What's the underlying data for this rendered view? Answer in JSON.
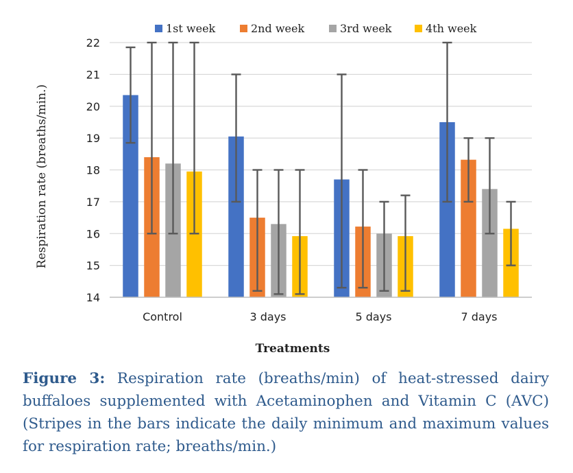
{
  "chart_data": {
    "type": "bar",
    "categories": [
      "Control",
      "3 days",
      "5 days",
      "7 days"
    ],
    "series": [
      {
        "name": "1st week",
        "color": "#4472c4",
        "values": [
          20.35,
          19.05,
          17.7,
          19.5
        ],
        "min": [
          18.85,
          17.0,
          14.3,
          17.0
        ],
        "max": [
          21.85,
          21.0,
          21.0,
          22.0
        ]
      },
      {
        "name": "2nd week",
        "color": "#ed7d31",
        "values": [
          18.4,
          16.5,
          16.22,
          18.32
        ],
        "min": [
          16.0,
          14.2,
          14.3,
          17.0
        ],
        "max": [
          22.0,
          18.0,
          18.0,
          19.0
        ]
      },
      {
        "name": "3rd week",
        "color": "#a5a5a5",
        "values": [
          18.2,
          16.3,
          16.0,
          17.4
        ],
        "min": [
          16.0,
          14.1,
          14.2,
          16.0
        ],
        "max": [
          22.0,
          18.0,
          17.0,
          19.0
        ]
      },
      {
        "name": "4th week",
        "color": "#ffc000",
        "values": [
          17.95,
          15.92,
          15.92,
          16.15
        ],
        "min": [
          16.0,
          14.1,
          14.2,
          15.0
        ],
        "max": [
          22.0,
          18.0,
          17.2,
          17.0
        ]
      }
    ],
    "ylim": [
      14,
      22
    ],
    "yticks": [
      14,
      15,
      16,
      17,
      18,
      19,
      20,
      21,
      22
    ],
    "ylabel": "Respiration rate (breaths/min.)",
    "xlabel": "Treatments",
    "grid": true,
    "legend": "top"
  },
  "caption": {
    "label": "Figure 3:",
    "text": "Respiration rate (breaths/min) of heat-stressed dairy buffaloes supplemented with Acetaminophen and Vitamin C (AVC) (Stripes in the bars indicate the daily minimum and maximum values for respiration rate; breaths/min.)"
  }
}
